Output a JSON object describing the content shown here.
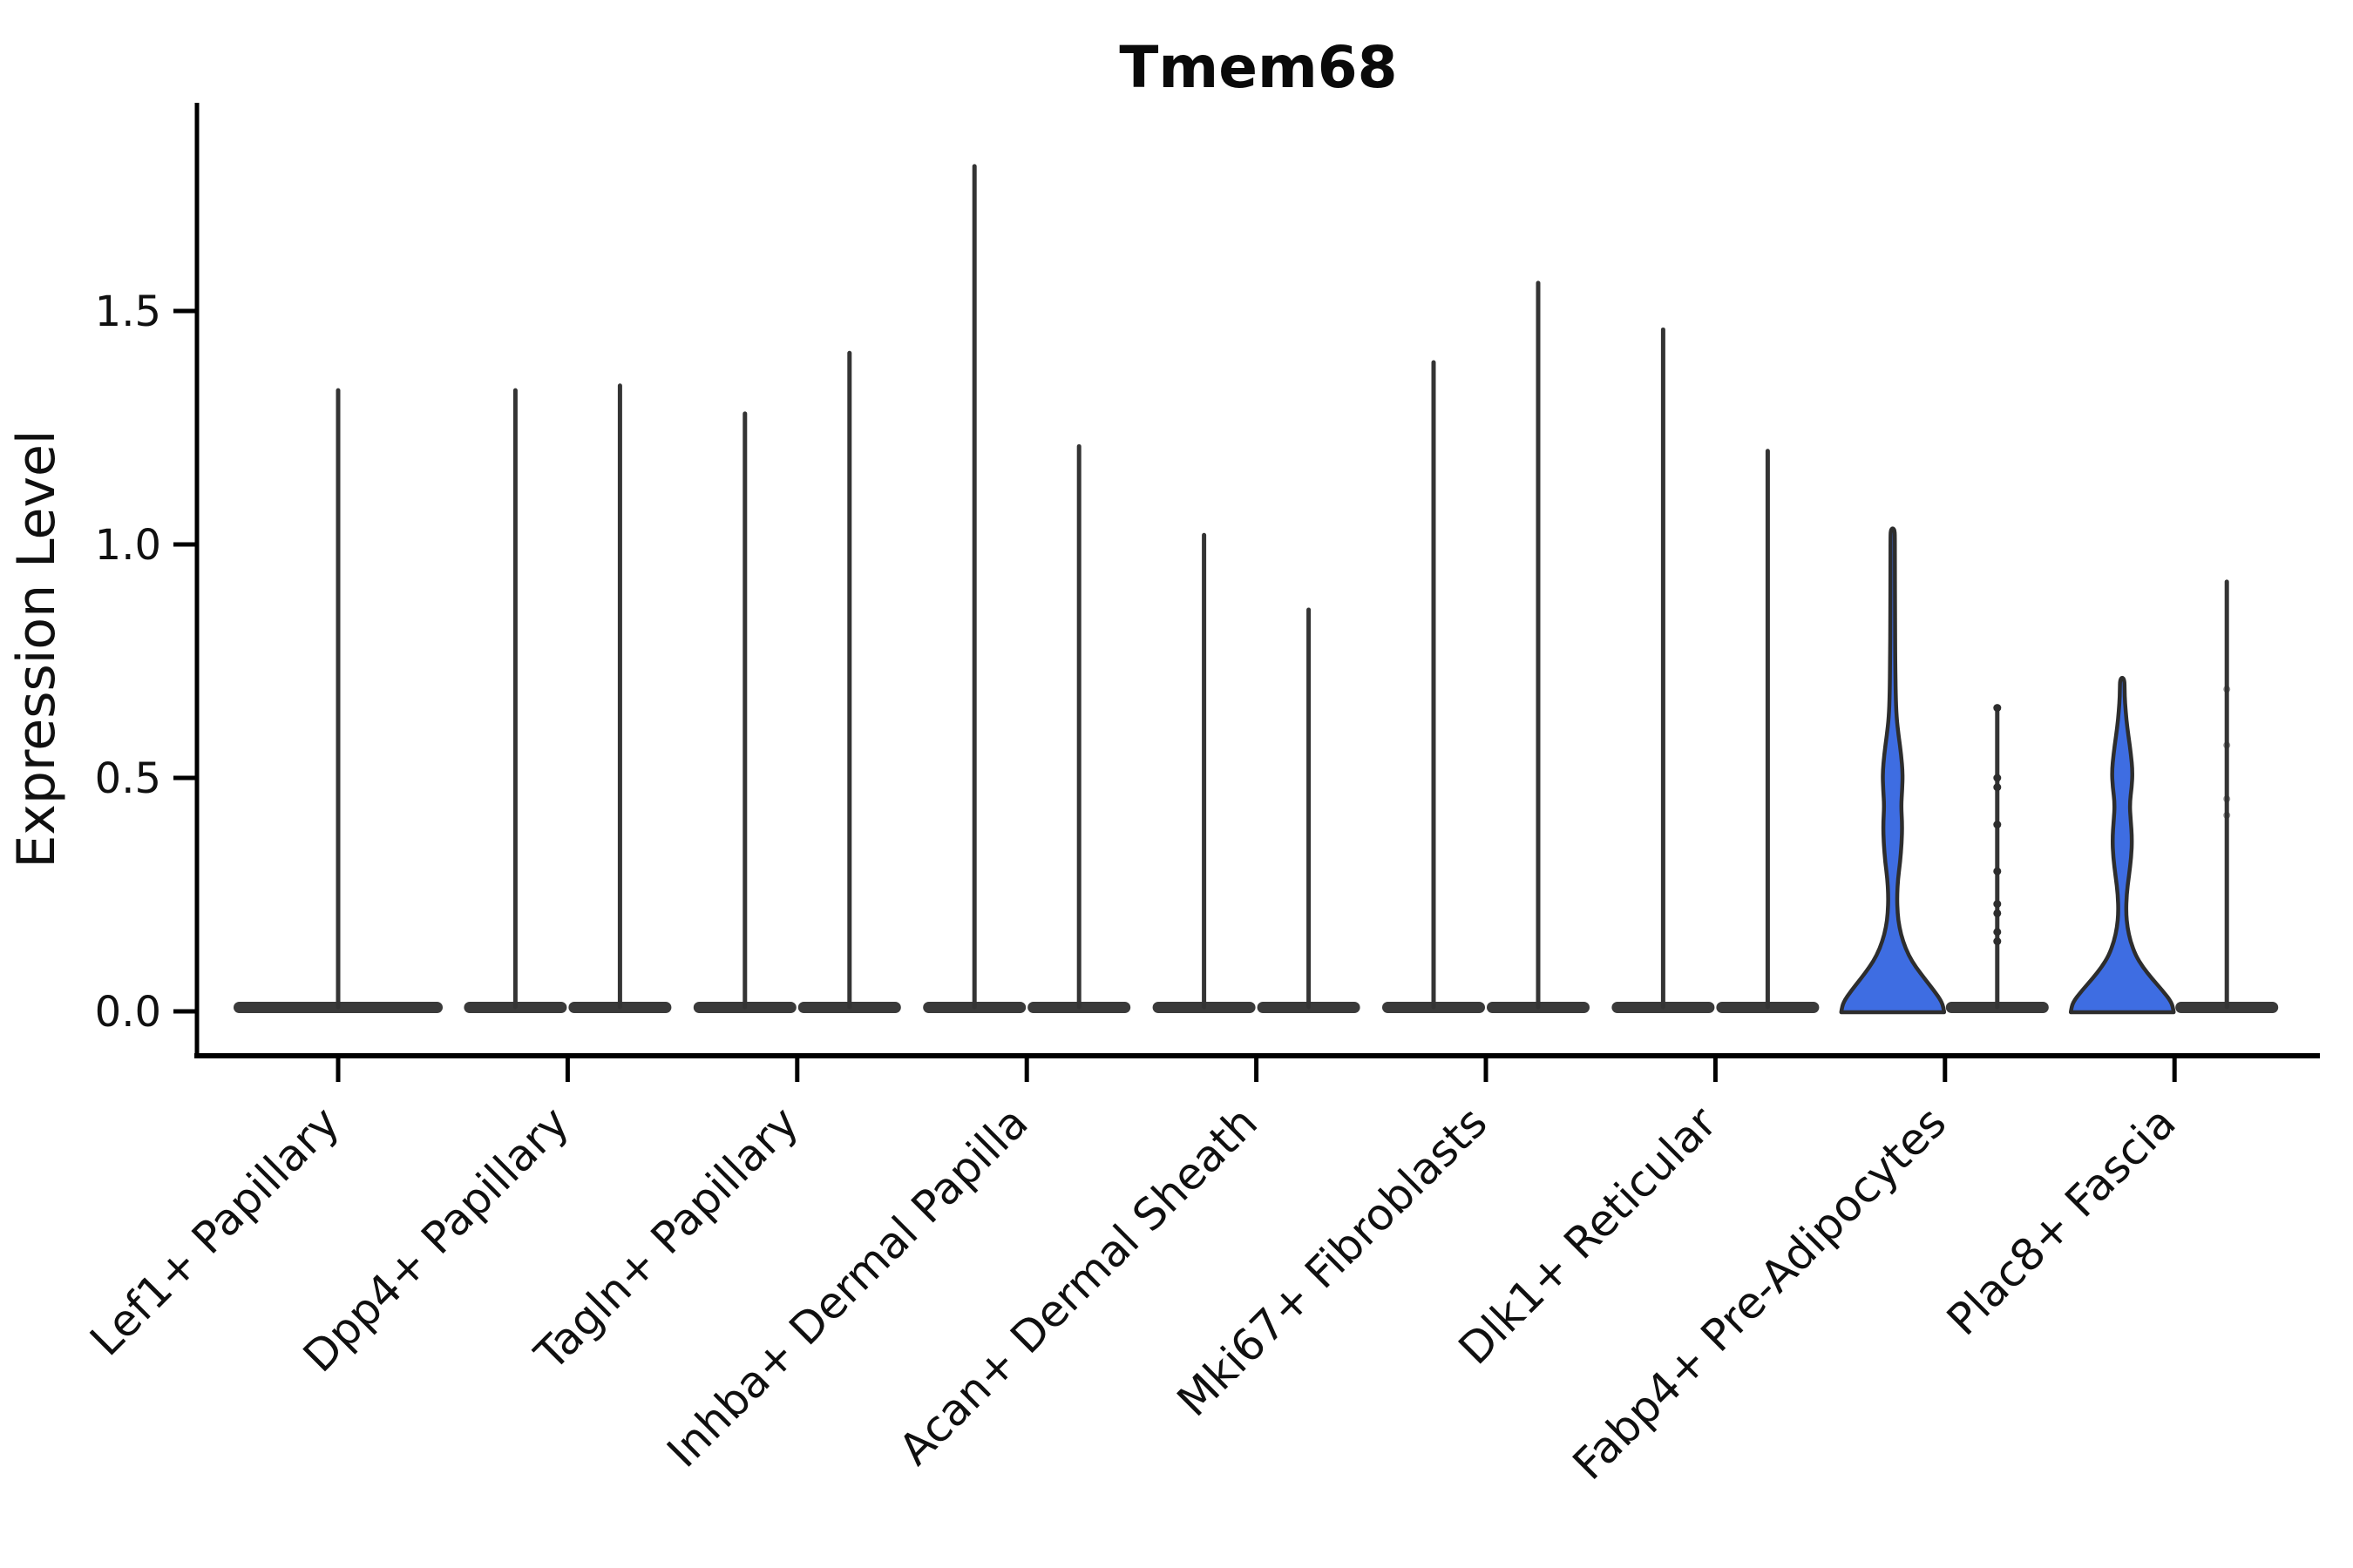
{
  "chart_data": {
    "type": "violin",
    "title": "Tmem68",
    "xlabel": "",
    "ylabel": "Expression Level",
    "grid": false,
    "legend": null,
    "yticks": [
      "0.0",
      "0.5",
      "1.0",
      "1.5"
    ],
    "ytick_values": [
      0.0,
      0.5,
      1.0,
      1.5
    ],
    "ylim": [
      -0.1,
      1.95
    ],
    "colors": {
      "violin_dark_fill": "#3a3a3a",
      "violin_stroke": "#2d2d2d",
      "spike_stroke": "#343434",
      "highlight_fill": "#3e6de2",
      "axis_ink": "#000000",
      "text_ink": "#101010"
    },
    "categories": [
      {
        "label": "Lef1+ Papillary",
        "violins": [
          {
            "pos": "center",
            "width": "full",
            "style": "spike",
            "max": 1.33
          }
        ]
      },
      {
        "label": "Dpp4+ Papillary",
        "violins": [
          {
            "pos": "left",
            "style": "spike",
            "max": 1.33
          },
          {
            "pos": "right",
            "style": "spike",
            "max": 1.34
          }
        ]
      },
      {
        "label": "Tagln+ Papillary",
        "violins": [
          {
            "pos": "left",
            "style": "spike",
            "max": 1.28
          },
          {
            "pos": "right",
            "style": "spike",
            "max": 1.41
          }
        ]
      },
      {
        "label": "Inhba+ Dermal Papilla",
        "violins": [
          {
            "pos": "left",
            "style": "spike",
            "max": 1.81
          },
          {
            "pos": "right",
            "style": "spike",
            "max": 1.21
          }
        ]
      },
      {
        "label": "Acan+ Dermal Sheath",
        "violins": [
          {
            "pos": "left",
            "style": "spike",
            "max": 1.02
          },
          {
            "pos": "right",
            "style": "spike",
            "max": 0.86
          }
        ]
      },
      {
        "label": "Mki67+ Fibroblasts",
        "violins": [
          {
            "pos": "left",
            "style": "spike",
            "max": 1.39
          },
          {
            "pos": "right",
            "style": "spike",
            "max": 1.56
          }
        ]
      },
      {
        "label": "Dlk1+ Reticular",
        "violins": [
          {
            "pos": "left",
            "style": "spike",
            "max": 1.46
          },
          {
            "pos": "right",
            "style": "spike",
            "max": 1.2
          }
        ]
      },
      {
        "label": "Fabp4+ Pre-Adipocytes",
        "violins": [
          {
            "pos": "left",
            "style": "bulged",
            "highlighted": true,
            "max": 1.03,
            "profile": [
              [
                0.0,
                1.0
              ],
              [
                0.02,
                0.96
              ],
              [
                0.045,
                0.8
              ],
              [
                0.07,
                0.62
              ],
              [
                0.095,
                0.45
              ],
              [
                0.12,
                0.31
              ],
              [
                0.15,
                0.2
              ],
              [
                0.18,
                0.13
              ],
              [
                0.21,
                0.095
              ],
              [
                0.245,
                0.085
              ],
              [
                0.28,
                0.1
              ],
              [
                0.32,
                0.145
              ],
              [
                0.36,
                0.175
              ],
              [
                0.4,
                0.185
              ],
              [
                0.44,
                0.165
              ],
              [
                0.475,
                0.185
              ],
              [
                0.51,
                0.195
              ],
              [
                0.55,
                0.165
              ],
              [
                0.59,
                0.115
              ],
              [
                0.63,
                0.075
              ],
              [
                0.68,
                0.058
              ],
              [
                0.75,
                0.05
              ],
              [
                0.85,
                0.046
              ],
              [
                0.95,
                0.043
              ],
              [
                1.01,
                0.042
              ],
              [
                1.03,
                0.04
              ]
            ]
          },
          {
            "pos": "right",
            "style": "spike",
            "max": 0.65,
            "jitter_points": [
              0.65,
              0.5,
              0.48,
              0.4,
              0.3,
              0.23,
              0.21,
              0.17,
              0.15
            ]
          }
        ]
      },
      {
        "label": "Plac8+ Fascia",
        "violins": [
          {
            "pos": "left",
            "style": "bulged",
            "highlighted": true,
            "max": 0.71,
            "profile": [
              [
                0.0,
                1.0
              ],
              [
                0.02,
                0.96
              ],
              [
                0.045,
                0.78
              ],
              [
                0.07,
                0.58
              ],
              [
                0.095,
                0.4
              ],
              [
                0.12,
                0.26
              ],
              [
                0.15,
                0.16
              ],
              [
                0.18,
                0.1
              ],
              [
                0.21,
                0.075
              ],
              [
                0.25,
                0.085
              ],
              [
                0.29,
                0.13
              ],
              [
                0.33,
                0.175
              ],
              [
                0.37,
                0.19
              ],
              [
                0.41,
                0.165
              ],
              [
                0.445,
                0.145
              ],
              [
                0.48,
                0.185
              ],
              [
                0.515,
                0.2
              ],
              [
                0.55,
                0.17
              ],
              [
                0.59,
                0.12
              ],
              [
                0.625,
                0.08
              ],
              [
                0.66,
                0.055
              ],
              [
                0.69,
                0.045
              ],
              [
                0.71,
                0.042
              ]
            ]
          },
          {
            "pos": "right",
            "style": "spike",
            "max": 0.92,
            "jitter_points_faint": [
              0.69,
              0.57,
              0.455,
              0.42
            ]
          }
        ]
      }
    ]
  }
}
